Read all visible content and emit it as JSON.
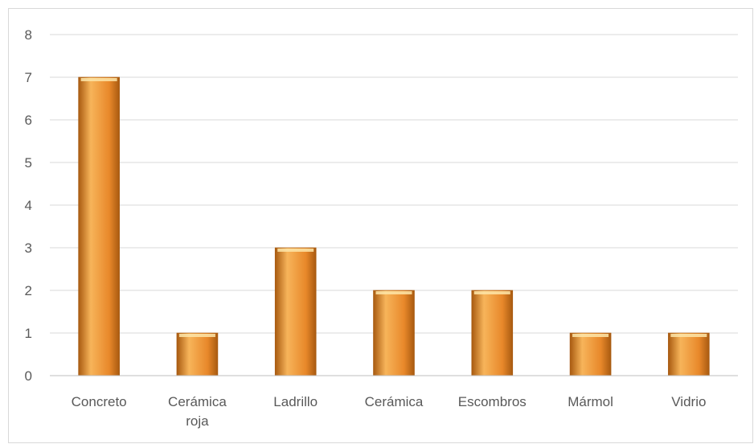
{
  "chart_data": {
    "type": "bar",
    "title": "",
    "xlabel": "",
    "ylabel": "",
    "categories": [
      "Concreto",
      "Cerámica roja",
      "Ladrillo",
      "Cerámica",
      "Escombros",
      "Mármol",
      "Vidrio"
    ],
    "category_lines": [
      [
        "Concreto"
      ],
      [
        "Cerámica",
        "roja"
      ],
      [
        "Ladrillo"
      ],
      [
        "Cerámica"
      ],
      [
        "Escombros"
      ],
      [
        "Mármol"
      ],
      [
        "Vidrio"
      ]
    ],
    "values": [
      7,
      1,
      3,
      2,
      2,
      1,
      1
    ],
    "ylim": [
      0,
      8
    ],
    "yticks": [
      "0",
      "1",
      "2",
      "3",
      "4",
      "5",
      "6",
      "7",
      "8"
    ],
    "grid": true,
    "legend": "none",
    "colors": {
      "bar_light": "#f7b45a",
      "bar_mid": "#e8882a",
      "bar_dark": "#a85a10",
      "bar_top": "#fde5a8",
      "grid": "#d9d9d9",
      "axis": "#bfbfbf",
      "text": "#595959"
    }
  }
}
